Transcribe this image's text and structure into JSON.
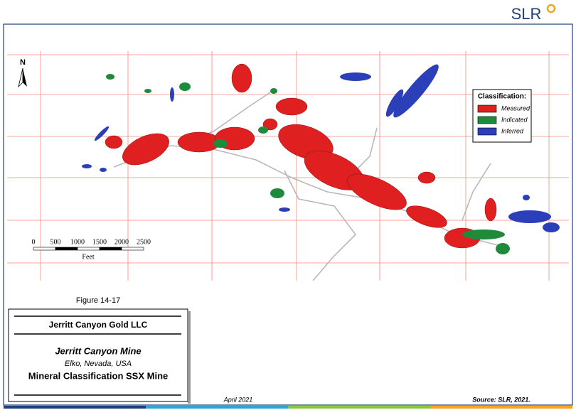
{
  "logo": "SLR",
  "north": "N",
  "legend": {
    "title": "Classification:",
    "items": [
      {
        "label": "Measured",
        "color": "#e02020"
      },
      {
        "label": "Indicated",
        "color": "#1f8a3c"
      },
      {
        "label": "Inferred",
        "color": "#2a3fb8"
      }
    ]
  },
  "scale_bar": {
    "ticks": [
      0,
      500,
      1000,
      1500,
      2000,
      2500
    ],
    "unit": "Feet"
  },
  "figure_number": "Figure 14-17",
  "title_block": {
    "company": "Jerritt Canyon Gold LLC",
    "mine": "Jerritt Canyon Mine",
    "location": "Elko, Nevada, USA",
    "title": "Mineral Classification SSX Mine"
  },
  "date": "April 2021",
  "source": "Source: SLR, 2021."
}
